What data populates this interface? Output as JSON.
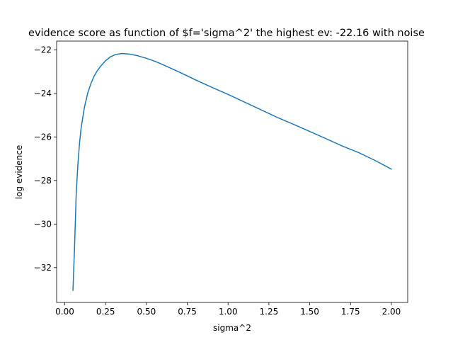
{
  "chart_data": {
    "type": "line",
    "title": "evidence score as function of $f='sigma^2' the highest ev: -22.16 with noise",
    "xlabel": "sigma^2",
    "ylabel": "log evidence",
    "xlim": [
      -0.05,
      2.1
    ],
    "ylim": [
      -33.6,
      -21.6
    ],
    "xticks": [
      0.0,
      0.25,
      0.5,
      0.75,
      1.0,
      1.25,
      1.5,
      1.75,
      2.0
    ],
    "xtick_labels": [
      "0.00",
      "0.25",
      "0.50",
      "0.75",
      "1.00",
      "1.25",
      "1.50",
      "1.75",
      "2.00"
    ],
    "yticks": [
      -32,
      -30,
      -28,
      -26,
      -24,
      -22
    ],
    "ytick_labels": [
      "−32",
      "−30",
      "−28",
      "−26",
      "−24",
      "−22"
    ],
    "grid": false,
    "color": "#1f77b4",
    "series": [
      {
        "x": [
          0.05,
          0.06,
          0.07,
          0.08,
          0.09,
          0.1,
          0.12,
          0.14,
          0.16,
          0.18,
          0.2,
          0.22,
          0.25,
          0.28,
          0.31,
          0.35,
          0.4,
          0.45,
          0.5,
          0.55,
          0.6,
          0.7,
          0.8,
          0.9,
          1.0,
          1.1,
          1.2,
          1.3,
          1.4,
          1.5,
          1.6,
          1.7,
          1.8,
          1.9,
          2.0
        ],
        "y": [
          -33.05,
          -31.0,
          -28.6,
          -27.3,
          -26.3,
          -25.6,
          -24.65,
          -24.0,
          -23.55,
          -23.2,
          -22.95,
          -22.75,
          -22.5,
          -22.32,
          -22.22,
          -22.17,
          -22.2,
          -22.28,
          -22.39,
          -22.52,
          -22.68,
          -23.02,
          -23.38,
          -23.72,
          -24.05,
          -24.4,
          -24.75,
          -25.1,
          -25.42,
          -25.75,
          -26.08,
          -26.42,
          -26.72,
          -27.08,
          -27.48
        ]
      }
    ]
  }
}
